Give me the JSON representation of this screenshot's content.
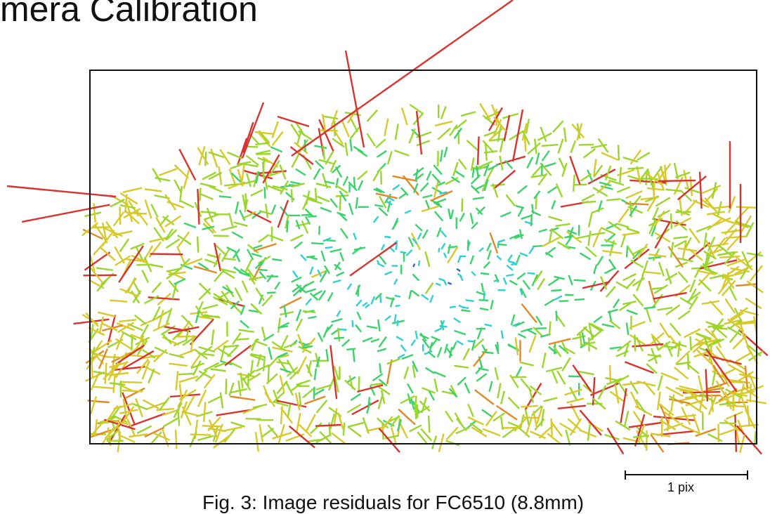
{
  "title": "mera Calibration",
  "caption": "Fig. 3: Image residuals for FC6510 (8.8mm)",
  "chart_data": {
    "type": "scatter",
    "description_kind": "residual vector field",
    "title": "",
    "scale_bar_label": "1 pix",
    "color_scale": [
      "#2a5fd6",
      "#2fcfd6",
      "#3ad26a",
      "#9ad62b",
      "#d8c92a",
      "#e08a26",
      "#d8332e"
    ],
    "residuals": [
      {
        "x": 0.03,
        "y": 0.36,
        "dx": -0.72,
        "dy": 0.14
      },
      {
        "x": 0.39,
        "y": 0.55,
        "dx": 0.38,
        "dy": -0.27
      },
      {
        "x": 0.37,
        "y": 0.88,
        "dx": -0.05,
        "dy": -0.44
      },
      {
        "x": 0.08,
        "y": 0.47,
        "dx": -0.2,
        "dy": 0.3
      },
      {
        "x": 0.96,
        "y": 0.37,
        "dx": 0.0,
        "dy": -0.55
      },
      {
        "x": 0.97,
        "y": 0.86,
        "dx": -0.25,
        "dy": -0.35
      }
    ]
  }
}
